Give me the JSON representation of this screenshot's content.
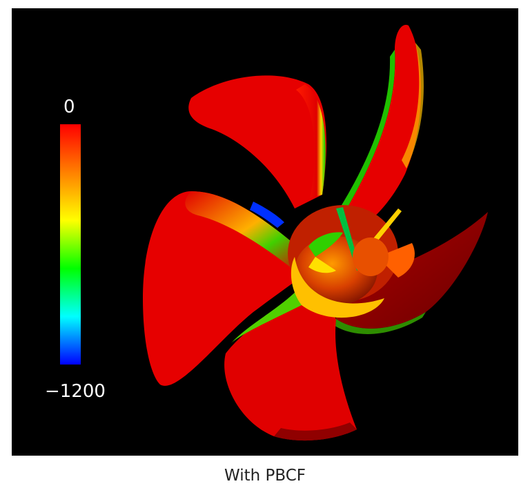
{
  "colorbar": {
    "max_label": "0",
    "min_label": "−1200",
    "colors": [
      "#ff0000",
      "#ff8000",
      "#ffff00",
      "#00ff00",
      "#00ffff",
      "#0000ff"
    ]
  },
  "caption": "With PBCF",
  "icons": {
    "render": "propeller-pressure-render"
  },
  "colors": {
    "background": "#000000",
    "blade_base": "#e00000"
  }
}
